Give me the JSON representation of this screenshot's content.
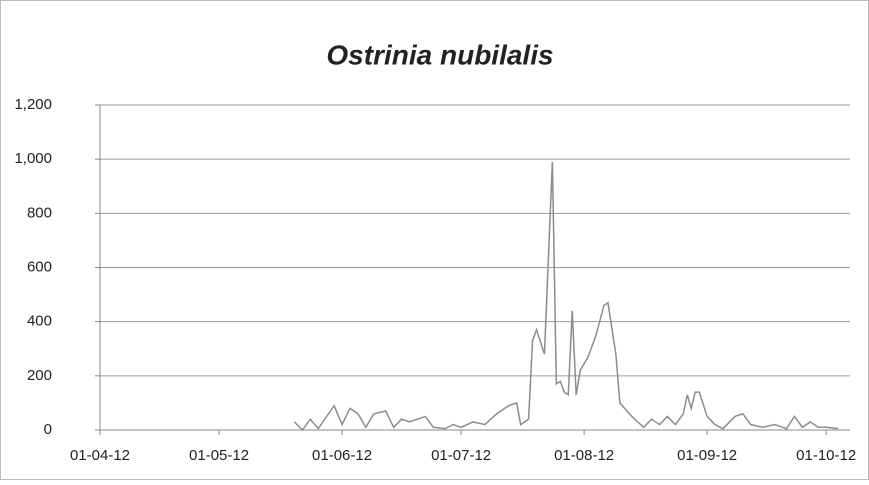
{
  "chart_data": {
    "type": "line",
    "title": "Ostrinia nubilalis",
    "x": [
      "2012-05-20",
      "2012-05-22",
      "2012-05-24",
      "2012-05-26",
      "2012-05-30",
      "2012-06-01",
      "2012-06-03",
      "2012-06-05",
      "2012-06-07",
      "2012-06-09",
      "2012-06-12",
      "2012-06-14",
      "2012-06-16",
      "2012-06-18",
      "2012-06-20",
      "2012-06-22",
      "2012-06-24",
      "2012-06-27",
      "2012-06-29",
      "2012-07-01",
      "2012-07-04",
      "2012-07-07",
      "2012-07-10",
      "2012-07-13",
      "2012-07-15",
      "2012-07-16",
      "2012-07-18",
      "2012-07-19",
      "2012-07-20",
      "2012-07-22",
      "2012-07-24",
      "2012-07-25",
      "2012-07-26",
      "2012-07-27",
      "2012-07-28",
      "2012-07-29",
      "2012-07-30",
      "2012-07-31",
      "2012-08-02",
      "2012-08-04",
      "2012-08-06",
      "2012-08-07",
      "2012-08-09",
      "2012-08-10",
      "2012-08-13",
      "2012-08-16",
      "2012-08-18",
      "2012-08-20",
      "2012-08-22",
      "2012-08-24",
      "2012-08-26",
      "2012-08-27",
      "2012-08-28",
      "2012-08-29",
      "2012-08-30",
      "2012-09-01",
      "2012-09-03",
      "2012-09-05",
      "2012-09-08",
      "2012-09-10",
      "2012-09-12",
      "2012-09-15",
      "2012-09-18",
      "2012-09-21",
      "2012-09-23",
      "2012-09-25",
      "2012-09-27",
      "2012-09-29",
      "2012-10-01",
      "2012-10-04"
    ],
    "series": [
      {
        "color": "#8c8c8c",
        "values": [
          30,
          0,
          40,
          5,
          90,
          20,
          80,
          60,
          10,
          60,
          70,
          10,
          40,
          30,
          40,
          50,
          10,
          5,
          20,
          10,
          30,
          20,
          60,
          90,
          100,
          20,
          40,
          330,
          370,
          280,
          990,
          170,
          180,
          140,
          130,
          440,
          130,
          220,
          270,
          350,
          460,
          470,
          280,
          100,
          50,
          10,
          40,
          20,
          50,
          20,
          60,
          130,
          80,
          140,
          140,
          50,
          20,
          5,
          50,
          60,
          20,
          10,
          20,
          5,
          50,
          10,
          30,
          10,
          10,
          5
        ]
      }
    ],
    "xlim": [
      "2012-04-01",
      "2012-10-07"
    ],
    "xticks": [
      {
        "value": "2012-04-01",
        "label": "01-04-12"
      },
      {
        "value": "2012-05-01",
        "label": "01-05-12"
      },
      {
        "value": "2012-06-01",
        "label": "01-06-12"
      },
      {
        "value": "2012-07-01",
        "label": "01-07-12"
      },
      {
        "value": "2012-08-01",
        "label": "01-08-12"
      },
      {
        "value": "2012-09-01",
        "label": "01-09-12"
      },
      {
        "value": "2012-10-01",
        "label": "01-10-12"
      }
    ],
    "ylim": [
      0,
      1200
    ],
    "yticks": [
      0,
      200,
      400,
      600,
      800,
      {
        "value": 1000,
        "label": "1,000"
      },
      {
        "value": 1200,
        "label": "1,200"
      }
    ],
    "grid": true
  }
}
